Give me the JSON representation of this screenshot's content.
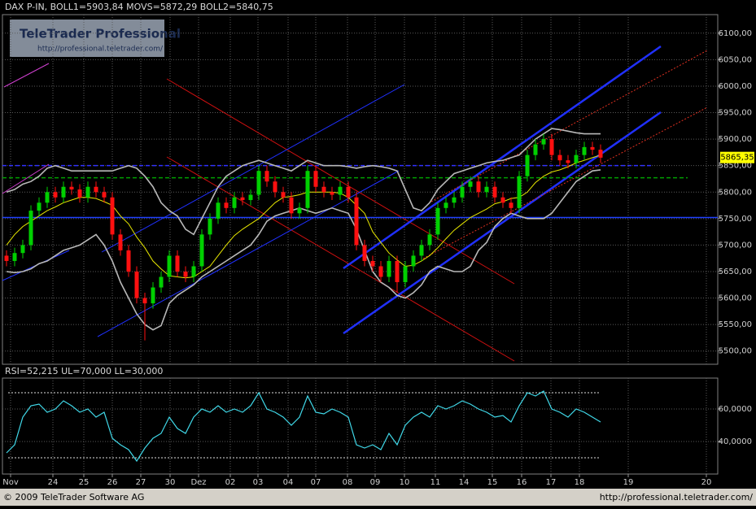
{
  "chart_data": [
    {
      "type": "candlestick",
      "title": "DAX P-IN, BOLL1=5903,84 MOVS=5872,29 BOLL2=5840,75",
      "xlim": [
        -0.5,
        87.4
      ],
      "ylim": [
        5475,
        6135
      ],
      "yticks": [
        {
          "value": 5500,
          "label": "5500,00"
        },
        {
          "value": 5550,
          "label": "5550,00"
        },
        {
          "value": 5600,
          "label": "5600,00"
        },
        {
          "value": 5650,
          "label": "5650,00"
        },
        {
          "value": 5700,
          "label": "5700,00"
        },
        {
          "value": 5750,
          "label": "5750,00"
        },
        {
          "value": 5800,
          "label": "5800,00"
        },
        {
          "value": 5850,
          "label": "5850,00"
        },
        {
          "value": 5900,
          "label": "5900,00"
        },
        {
          "value": 5950,
          "label": "5950,00"
        },
        {
          "value": 6000,
          "label": "6000,00"
        },
        {
          "value": 6050,
          "label": "6050,00"
        },
        {
          "value": 6100,
          "label": "6100,00"
        }
      ],
      "grid": true,
      "up_color": "#00d000",
      "down_color": "#ff1010",
      "open": [
        5680,
        5670,
        5685,
        5700,
        5765,
        5780,
        5800,
        5790,
        5810,
        5805,
        5790,
        5810,
        5800,
        5790,
        5720,
        5690,
        5650,
        5600,
        5590,
        5620,
        5640,
        5680,
        5650,
        5640,
        5660,
        5720,
        5750,
        5780,
        5770,
        5790,
        5785,
        5795,
        5840,
        5820,
        5800,
        5790,
        5760,
        5770,
        5840,
        5810,
        5800,
        5795,
        5810,
        5790,
        5700,
        5670,
        5660,
        5640,
        5670,
        5630,
        5660,
        5680,
        5700,
        5720,
        5770,
        5780,
        5790,
        5810,
        5820,
        5800,
        5810,
        5790,
        5780,
        5770,
        5830,
        5870,
        5890,
        5900,
        5870,
        5860,
        5855,
        5870,
        5885,
        5880
      ],
      "high": [
        5690,
        5695,
        5710,
        5775,
        5790,
        5810,
        5810,
        5820,
        5820,
        5815,
        5820,
        5820,
        5810,
        5800,
        5730,
        5700,
        5660,
        5610,
        5630,
        5650,
        5690,
        5690,
        5660,
        5670,
        5730,
        5760,
        5790,
        5790,
        5800,
        5800,
        5805,
        5850,
        5850,
        5830,
        5810,
        5800,
        5780,
        5850,
        5850,
        5820,
        5810,
        5820,
        5820,
        5800,
        5710,
        5680,
        5670,
        5680,
        5680,
        5670,
        5690,
        5710,
        5730,
        5780,
        5790,
        5800,
        5820,
        5830,
        5830,
        5820,
        5820,
        5800,
        5790,
        5840,
        5880,
        5900,
        5910,
        5910,
        5880,
        5870,
        5880,
        5895,
        5895,
        5890
      ],
      "low": [
        5660,
        5660,
        5675,
        5690,
        5755,
        5770,
        5780,
        5780,
        5795,
        5780,
        5780,
        5790,
        5780,
        5710,
        5680,
        5640,
        5590,
        5520,
        5580,
        5610,
        5630,
        5640,
        5630,
        5630,
        5650,
        5710,
        5740,
        5760,
        5760,
        5775,
        5775,
        5785,
        5810,
        5790,
        5780,
        5750,
        5750,
        5760,
        5800,
        5790,
        5785,
        5785,
        5780,
        5690,
        5660,
        5650,
        5630,
        5630,
        5610,
        5620,
        5650,
        5670,
        5690,
        5710,
        5760,
        5770,
        5780,
        5800,
        5790,
        5790,
        5780,
        5770,
        5760,
        5760,
        5820,
        5860,
        5880,
        5860,
        5850,
        5845,
        5845,
        5860,
        5870,
        5855
      ],
      "close": [
        5670,
        5685,
        5700,
        5765,
        5780,
        5800,
        5790,
        5810,
        5805,
        5790,
        5810,
        5800,
        5790,
        5720,
        5690,
        5650,
        5600,
        5590,
        5620,
        5640,
        5680,
        5650,
        5640,
        5660,
        5720,
        5750,
        5780,
        5770,
        5790,
        5785,
        5795,
        5840,
        5820,
        5800,
        5790,
        5760,
        5770,
        5840,
        5810,
        5800,
        5795,
        5810,
        5790,
        5700,
        5670,
        5660,
        5640,
        5670,
        5630,
        5660,
        5680,
        5700,
        5720,
        5770,
        5780,
        5790,
        5810,
        5820,
        5800,
        5810,
        5790,
        5780,
        5770,
        5830,
        5870,
        5890,
        5900,
        5870,
        5860,
        5855,
        5870,
        5885,
        5880,
        5865
      ],
      "overlays": [
        {
          "color": "#b8b8b8",
          "values": [
            5800,
            5805,
            5815,
            5820,
            5830,
            5845,
            5850,
            5845,
            5840,
            5840,
            5840,
            5840,
            5840,
            5840,
            5845,
            5850,
            5845,
            5830,
            5810,
            5780,
            5765,
            5755,
            5730,
            5720,
            5750,
            5780,
            5810,
            5830,
            5840,
            5850,
            5855,
            5860,
            5855,
            5850,
            5845,
            5840,
            5850,
            5860,
            5855,
            5850,
            5850,
            5850,
            5848,
            5845,
            5848,
            5850,
            5848,
            5845,
            5840,
            5805,
            5770,
            5765,
            5780,
            5805,
            5820,
            5835,
            5840,
            5845,
            5850,
            5855,
            5858,
            5860,
            5865,
            5870,
            5885,
            5900,
            5910,
            5920,
            5918,
            5915,
            5912,
            5910,
            5910,
            5910
          ]
        },
        {
          "color": "#e8e800",
          "values": [
            5700,
            5720,
            5735,
            5745,
            5755,
            5765,
            5772,
            5780,
            5785,
            5790,
            5790,
            5788,
            5782,
            5775,
            5755,
            5740,
            5715,
            5695,
            5670,
            5655,
            5642,
            5640,
            5638,
            5640,
            5650,
            5660,
            5680,
            5700,
            5718,
            5730,
            5740,
            5750,
            5765,
            5780,
            5790,
            5792,
            5795,
            5800,
            5800,
            5800,
            5800,
            5798,
            5790,
            5775,
            5760,
            5725,
            5705,
            5685,
            5672,
            5660,
            5662,
            5670,
            5680,
            5695,
            5712,
            5728,
            5740,
            5752,
            5760,
            5768,
            5778,
            5782,
            5788,
            5790,
            5800,
            5818,
            5830,
            5838,
            5842,
            5848,
            5855,
            5860,
            5865,
            5870
          ]
        },
        {
          "color": "#b8b8b8",
          "values": [
            5650,
            5648,
            5650,
            5655,
            5665,
            5670,
            5680,
            5690,
            5695,
            5700,
            5710,
            5720,
            5700,
            5670,
            5630,
            5600,
            5570,
            5550,
            5540,
            5548,
            5590,
            5605,
            5615,
            5625,
            5640,
            5650,
            5660,
            5670,
            5680,
            5690,
            5700,
            5720,
            5745,
            5755,
            5760,
            5765,
            5770,
            5765,
            5760,
            5765,
            5770,
            5765,
            5760,
            5730,
            5690,
            5650,
            5630,
            5620,
            5605,
            5600,
            5610,
            5625,
            5650,
            5660,
            5655,
            5650,
            5650,
            5660,
            5690,
            5705,
            5735,
            5750,
            5760,
            5755,
            5750,
            5750,
            5750,
            5760,
            5780,
            5800,
            5820,
            5830,
            5840,
            5842
          ]
        }
      ],
      "hlines": [
        {
          "value": 5850,
          "color": "#3030ff",
          "dash": true,
          "end": 79.2
        },
        {
          "value": 5827,
          "color": "#00a000",
          "dash": true,
          "end": 83.7
        },
        {
          "value": 5752,
          "color": "#2040ff",
          "dash": false,
          "end": 87.4
        }
      ],
      "last": {
        "value": 5865.35,
        "label": "5865,35",
        "color": "#ffff00"
      }
    },
    {
      "type": "line",
      "title": "RSI=52,215 UL=70,000 LL=30,000",
      "xlim": [
        -0.5,
        87.4
      ],
      "ylim": [
        20,
        79
      ],
      "yticks": [
        {
          "value": 40,
          "label": "40,0000"
        },
        {
          "value": 60,
          "label": "60,0000"
        }
      ],
      "upper_limit": 70,
      "lower_limit": 30,
      "grid": true,
      "xticks": [
        {
          "value": 0.5,
          "label": "Nov"
        },
        {
          "value": 5.7,
          "label": "24"
        },
        {
          "value": 9.5,
          "label": "25"
        },
        {
          "value": 13,
          "label": "26"
        },
        {
          "value": 16.5,
          "label": "27"
        },
        {
          "value": 20.1,
          "label": "30"
        },
        {
          "value": 23.6,
          "label": "Dez"
        },
        {
          "value": 27.5,
          "label": "02"
        },
        {
          "value": 30.9,
          "label": "03"
        },
        {
          "value": 34.6,
          "label": "04"
        },
        {
          "value": 38,
          "label": "07"
        },
        {
          "value": 41.9,
          "label": "08"
        },
        {
          "value": 45.3,
          "label": "09"
        },
        {
          "value": 48.9,
          "label": "10"
        },
        {
          "value": 52.7,
          "label": "11"
        },
        {
          "value": 56.2,
          "label": "14"
        },
        {
          "value": 59.7,
          "label": "15"
        },
        {
          "value": 63.3,
          "label": "16"
        },
        {
          "value": 66.9,
          "label": "17"
        },
        {
          "value": 70.4,
          "label": "18"
        },
        {
          "value": 76.4,
          "label": "19"
        },
        {
          "value": 86,
          "label": "20"
        }
      ],
      "series": [
        {
          "color": "#40d8e8",
          "values": [
            33,
            38,
            55,
            62,
            63,
            58,
            60,
            65,
            62,
            58,
            60,
            55,
            58,
            42,
            38,
            35,
            28,
            36,
            42,
            45,
            55,
            48,
            45,
            55,
            60,
            58,
            62,
            58,
            60,
            58,
            62,
            70,
            60,
            58,
            55,
            50,
            55,
            68,
            58,
            57,
            60,
            58,
            55,
            38,
            36,
            38,
            35,
            45,
            38,
            50,
            55,
            58,
            55,
            62,
            60,
            62,
            65,
            63,
            60,
            58,
            55,
            56,
            52,
            62,
            70,
            68,
            71,
            60,
            58,
            55,
            60,
            58,
            55,
            52
          ]
        }
      ]
    }
  ],
  "logo": {
    "title": "TeleTrader Professional",
    "url": "http://professional.teletrader.com/"
  },
  "footer": {
    "left": "© 2009 TeleTrader Software AG",
    "right": "http://professional.teletrader.com/"
  }
}
